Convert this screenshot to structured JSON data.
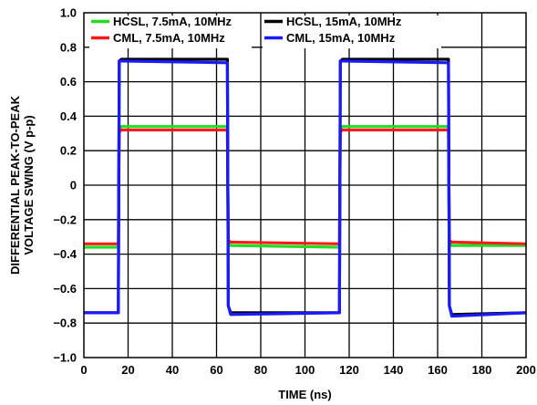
{
  "chart_data": {
    "type": "line",
    "xlabel": "TIME (ns)",
    "ylabel_lines": [
      "DIFFERENTIAL PEAK-TO-PEAK",
      "VOLTAGE SWING (V p-p)"
    ],
    "xlim": [
      0,
      200
    ],
    "ylim": [
      -1.0,
      1.0
    ],
    "x_ticks": [
      0,
      20,
      40,
      60,
      80,
      100,
      120,
      140,
      160,
      180,
      200
    ],
    "x_tick_labels": [
      "0",
      "20",
      "40",
      "60",
      "80",
      "100",
      "120",
      "140",
      "160",
      "180",
      "200"
    ],
    "y_ticks": [
      -1.0,
      -0.8,
      -0.6,
      -0.4,
      -0.2,
      0,
      0.2,
      0.4,
      0.6,
      0.8,
      1.0
    ],
    "y_tick_labels": [
      "−1.0",
      "−0.8",
      "−0.6",
      "−0.4",
      "−0.2",
      "0",
      "0.2",
      "0.4",
      "0.6",
      "0.8",
      "1.0"
    ],
    "grid": true,
    "legend_position": "top",
    "series": [
      {
        "name": "HCSL, 7.5mA, 10MHz",
        "color": "#22dd22",
        "x": [
          0,
          15.6,
          16.0,
          17.0,
          64.9,
          65.3,
          66.4,
          115.6,
          116.0,
          117.0,
          164.9,
          165.3,
          166.4,
          200
        ],
        "y": [
          -0.36,
          -0.36,
          0.33,
          0.34,
          0.34,
          -0.34,
          -0.35,
          -0.36,
          0.33,
          0.34,
          0.34,
          -0.34,
          -0.35,
          -0.35
        ]
      },
      {
        "name": "CML, 7.5mA, 10MHz",
        "color": "#ff1a1a",
        "x": [
          0,
          15.6,
          16.0,
          17.0,
          64.9,
          65.3,
          66.4,
          115.6,
          116.0,
          117.0,
          164.9,
          165.3,
          166.4,
          200
        ],
        "y": [
          -0.34,
          -0.34,
          0.31,
          0.32,
          0.32,
          -0.32,
          -0.33,
          -0.34,
          0.31,
          0.32,
          0.32,
          -0.32,
          -0.33,
          -0.34
        ]
      },
      {
        "name": "HCSL, 15mA, 10MHz",
        "color": "#000000",
        "x": [
          0,
          15.6,
          16.0,
          17.0,
          64.9,
          65.3,
          66.4,
          115.6,
          116.0,
          117.0,
          164.9,
          165.3,
          166.4,
          200
        ],
        "y": [
          -0.74,
          -0.74,
          0.72,
          0.73,
          0.73,
          -0.7,
          -0.74,
          -0.74,
          0.72,
          0.73,
          0.73,
          -0.7,
          -0.75,
          -0.74
        ]
      },
      {
        "name": "CML, 15mA, 10MHz",
        "color": "#1a1aff",
        "x": [
          0,
          15.6,
          16.0,
          17.0,
          64.9,
          65.3,
          66.4,
          115.6,
          116.0,
          117.0,
          164.9,
          165.3,
          166.4,
          200
        ],
        "y": [
          -0.74,
          -0.74,
          0.72,
          0.72,
          0.71,
          -0.7,
          -0.75,
          -0.74,
          0.72,
          0.72,
          0.71,
          -0.7,
          -0.76,
          -0.74
        ]
      }
    ]
  }
}
